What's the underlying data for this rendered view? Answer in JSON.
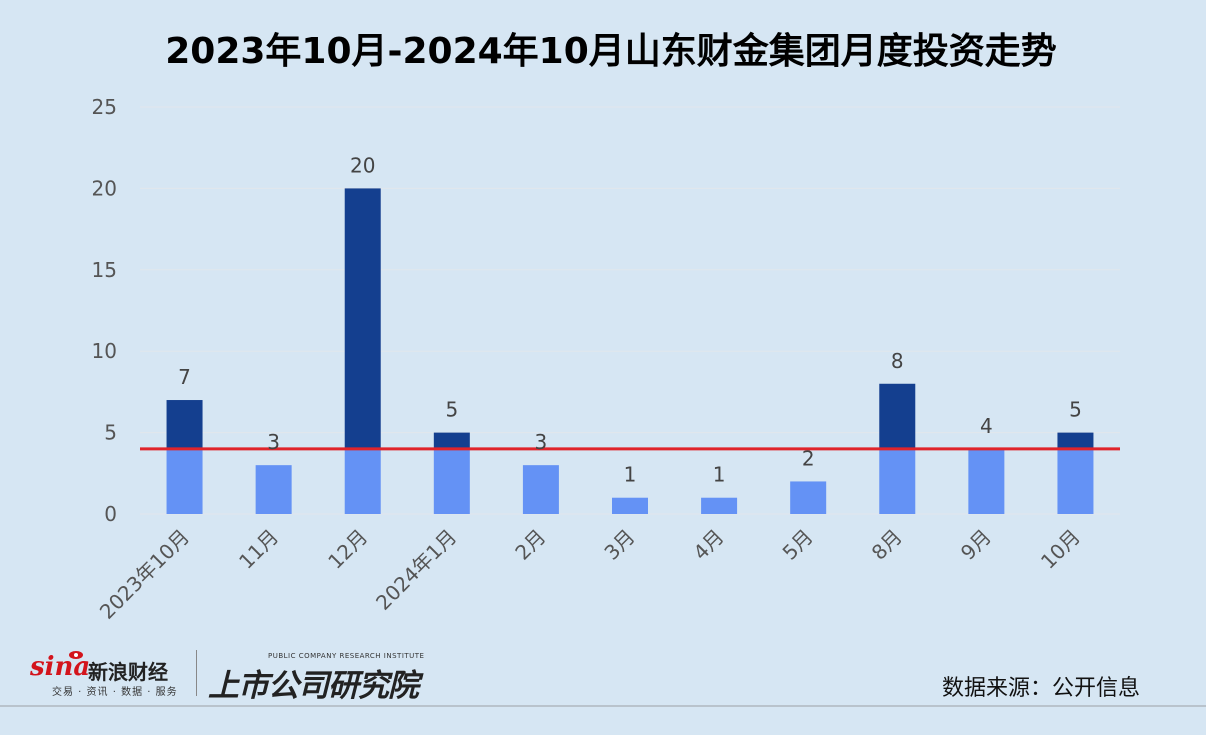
{
  "title": "2023年10月-2024年10月山东财金集团月度投资走势",
  "chart_data": {
    "type": "bar",
    "categories": [
      "2023年10月",
      "11月",
      "12月",
      "2024年1月",
      "2月",
      "3月",
      "4月",
      "5月",
      "8月",
      "9月",
      "10月"
    ],
    "values": [
      7,
      3,
      20,
      5,
      3,
      1,
      1,
      2,
      8,
      4,
      5
    ],
    "data_labels": [
      "7",
      "3",
      "20",
      "5",
      "3",
      "1",
      "1",
      "2",
      "8",
      "4",
      "5"
    ],
    "ylim": [
      0,
      25
    ],
    "yticks": [
      "0",
      "5",
      "10",
      "15",
      "20",
      "25"
    ],
    "reference_line": 4,
    "grid": true,
    "colors": {
      "below_line": "#6492f5",
      "above_line": "#143f8f",
      "reference_line": "#e0242a",
      "grid": "#e1e7ec"
    }
  },
  "footer": {
    "brand_word": "sina",
    "brand_name": "新浪财经",
    "brand_sub": "交易 · 资讯 · 数据 · 服务",
    "institute_en": "PUBLIC COMPANY RESEARCH INSTITUTE",
    "institute_cn": "上市公司研究院",
    "source": "数据来源：公开信息"
  }
}
